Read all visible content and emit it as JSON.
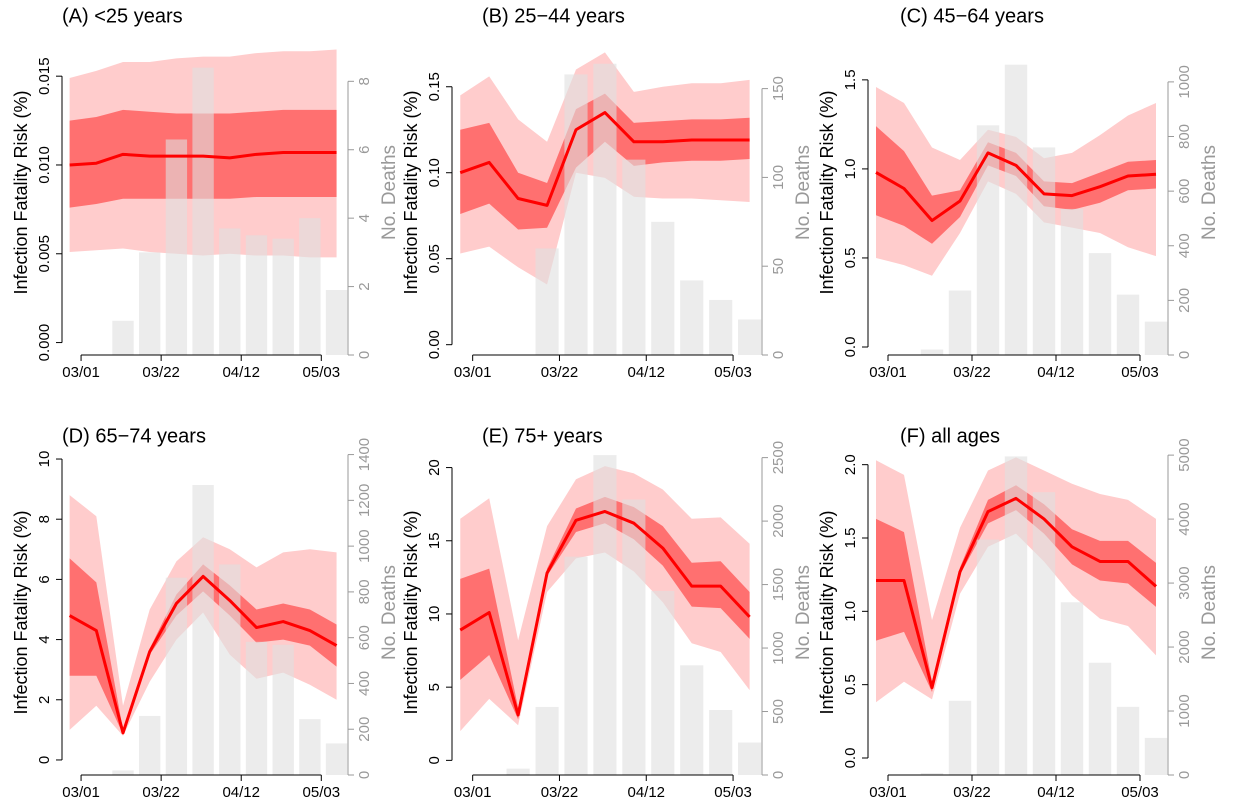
{
  "chart_data": [
    {
      "type": "line",
      "title": "(A) <25 years",
      "ylabel": "Infection Fatality Risk (%)",
      "y2label": "No. Deaths",
      "x": [
        -3,
        4,
        11,
        18,
        25,
        32,
        39,
        46,
        53,
        60,
        67
      ],
      "xlim": [
        -5,
        70
      ],
      "xticks": [
        {
          "value": 0,
          "label": "03/01"
        },
        {
          "value": 21,
          "label": "03/22"
        },
        {
          "value": 42,
          "label": "04/12"
        },
        {
          "value": 63,
          "label": "05/03"
        }
      ],
      "ylim": [
        -0.0007,
        0.0176
      ],
      "yticks": [
        {
          "value": 0,
          "label": "0.000"
        },
        {
          "value": 0.005,
          "label": "0.005"
        },
        {
          "value": 0.01,
          "label": "0.010"
        },
        {
          "value": 0.015,
          "label": "0.015"
        }
      ],
      "y2lim": [
        0,
        9.5
      ],
      "y2ticks": [
        0,
        2,
        4,
        6,
        8
      ],
      "series": [
        {
          "type": "band",
          "color": "#ffcccc",
          "lower": [
            0.0051,
            0.0052,
            0.0053,
            0.0051,
            0.005,
            0.0049,
            0.005,
            0.0049,
            0.0049,
            0.0048,
            0.0048
          ],
          "upper": [
            0.0149,
            0.0153,
            0.0158,
            0.0158,
            0.016,
            0.0161,
            0.0161,
            0.0163,
            0.0164,
            0.0164,
            0.0165
          ]
        },
        {
          "type": "band",
          "color": "#ff7070",
          "lower": [
            0.0076,
            0.0078,
            0.0081,
            0.0081,
            0.0081,
            0.0081,
            0.0081,
            0.0082,
            0.0082,
            0.0082,
            0.0082
          ],
          "upper": [
            0.0125,
            0.0127,
            0.0131,
            0.013,
            0.0129,
            0.0129,
            0.0129,
            0.013,
            0.0131,
            0.0131,
            0.0131
          ]
        },
        {
          "type": "bar",
          "axis": "y2",
          "color": "#e0e0e0",
          "values": [
            0,
            0,
            1,
            3,
            6.3,
            8.4,
            3.7,
            3.5,
            3.4,
            4,
            1.9
          ]
        },
        {
          "type": "line",
          "color": "#ff0000",
          "values": [
            0.01,
            0.0101,
            0.0106,
            0.0105,
            0.0105,
            0.0105,
            0.0104,
            0.0106,
            0.0107,
            0.0107,
            0.0107
          ]
        }
      ]
    },
    {
      "type": "line",
      "title": "(B) 25−44 years",
      "ylabel": "Infection Fatality Risk (%)",
      "y2label": "No. Deaths",
      "x": [
        -3,
        4,
        11,
        18,
        25,
        32,
        39,
        46,
        53,
        60,
        67
      ],
      "xlim": [
        -5,
        70
      ],
      "xticks": [
        {
          "value": 0,
          "label": "03/01"
        },
        {
          "value": 21,
          "label": "03/22"
        },
        {
          "value": 42,
          "label": "04/12"
        },
        {
          "value": 63,
          "label": "05/03"
        }
      ],
      "ylim": [
        -0.006,
        0.183
      ],
      "yticks": [
        {
          "value": 0,
          "label": "0.00"
        },
        {
          "value": 0.05,
          "label": "0.05"
        },
        {
          "value": 0.1,
          "label": "0.10"
        },
        {
          "value": 0.15,
          "label": "0.15"
        }
      ],
      "y2lim": [
        0,
        183
      ],
      "y2ticks": [
        0,
        50,
        100,
        150
      ],
      "series": [
        {
          "type": "band",
          "color": "#ffcccc",
          "lower": [
            0.053,
            0.057,
            0.045,
            0.035,
            0.1,
            0.097,
            0.086,
            0.085,
            0.085,
            0.084,
            0.083
          ],
          "upper": [
            0.145,
            0.156,
            0.131,
            0.118,
            0.16,
            0.17,
            0.147,
            0.15,
            0.152,
            0.152,
            0.154
          ]
        },
        {
          "type": "band",
          "color": "#ff7070",
          "lower": [
            0.076,
            0.082,
            0.067,
            0.068,
            0.103,
            0.118,
            0.104,
            0.106,
            0.107,
            0.107,
            0.108
          ],
          "upper": [
            0.125,
            0.129,
            0.1,
            0.094,
            0.137,
            0.146,
            0.129,
            0.13,
            0.131,
            0.131,
            0.132
          ]
        },
        {
          "type": "bar",
          "axis": "y2",
          "color": "#e0e0e0",
          "values": [
            0,
            0,
            0,
            60,
            158,
            164,
            110,
            75,
            42,
            31,
            20
          ]
        },
        {
          "type": "line",
          "color": "#ff0000",
          "values": [
            0.1,
            0.106,
            0.085,
            0.081,
            0.125,
            0.135,
            0.118,
            0.118,
            0.119,
            0.119,
            0.119
          ]
        }
      ]
    },
    {
      "type": "line",
      "title": "(C) 45−64 years",
      "ylabel": "Infection Fatality Risk (%)",
      "y2label": "No. Deaths",
      "x": [
        -3,
        4,
        11,
        18,
        25,
        32,
        39,
        46,
        53,
        60,
        67
      ],
      "xlim": [
        -5,
        70
      ],
      "xticks": [
        {
          "value": 0,
          "label": "03/01"
        },
        {
          "value": 21,
          "label": "03/22"
        },
        {
          "value": 42,
          "label": "04/12"
        },
        {
          "value": 63,
          "label": "05/03"
        }
      ],
      "ylim": [
        -0.045,
        1.78
      ],
      "yticks": [
        {
          "value": 0,
          "label": "0.0"
        },
        {
          "value": 0.5,
          "label": "0.5"
        },
        {
          "value": 1,
          "label": "1.0"
        },
        {
          "value": 1.5,
          "label": "1.5"
        }
      ],
      "y2lim": [
        0,
        1190
      ],
      "y2ticks": [
        0,
        200,
        400,
        600,
        800,
        1000
      ],
      "series": [
        {
          "type": "band",
          "color": "#ffcccc",
          "lower": [
            0.5,
            0.46,
            0.4,
            0.64,
            0.93,
            0.86,
            0.7,
            0.67,
            0.64,
            0.56,
            0.51
          ],
          "upper": [
            1.46,
            1.37,
            1.12,
            1.05,
            1.22,
            1.18,
            1.06,
            1.09,
            1.19,
            1.3,
            1.37
          ]
        },
        {
          "type": "band",
          "color": "#ff7070",
          "lower": [
            0.74,
            0.68,
            0.58,
            0.73,
            1.02,
            0.96,
            0.79,
            0.77,
            0.81,
            0.88,
            0.89
          ],
          "upper": [
            1.24,
            1.1,
            0.85,
            0.88,
            1.15,
            1.09,
            0.93,
            0.92,
            0.98,
            1.04,
            1.05
          ]
        },
        {
          "type": "bar",
          "axis": "y2",
          "color": "#e0e0e0",
          "values": [
            0,
            0,
            20,
            236,
            841,
            1063,
            760,
            535,
            373,
            221,
            122
          ]
        },
        {
          "type": "line",
          "color": "#ff0000",
          "values": [
            0.98,
            0.89,
            0.71,
            0.82,
            1.09,
            1.02,
            0.86,
            0.85,
            0.9,
            0.96,
            0.97
          ]
        }
      ]
    },
    {
      "type": "line",
      "title": "(D) 65−74 years",
      "ylabel": "Infection Fatality Risk (%)",
      "y2label": "No. Deaths",
      "x": [
        -3,
        4,
        11,
        18,
        25,
        32,
        39,
        46,
        53,
        60,
        67
      ],
      "xlim": [
        -5,
        70
      ],
      "xticks": [
        {
          "value": 0,
          "label": "03/01"
        },
        {
          "value": 21,
          "label": "03/22"
        },
        {
          "value": 42,
          "label": "04/12"
        },
        {
          "value": 63,
          "label": "05/03"
        }
      ],
      "ylim": [
        -0.5,
        10.3
      ],
      "yticks": [
        0,
        2,
        4,
        6,
        8,
        10
      ],
      "y2lim": [
        0,
        1420
      ],
      "y2ticks": [
        0,
        200,
        400,
        600,
        800,
        1000,
        1200,
        1400
      ],
      "series": [
        {
          "type": "band",
          "color": "#ffcccc",
          "lower": [
            1.0,
            1.8,
            0.8,
            2.6,
            4.0,
            4.9,
            3.5,
            2.7,
            2.9,
            2.5,
            2.0
          ],
          "upper": [
            8.8,
            8.1,
            1.8,
            5.0,
            6.6,
            7.4,
            7.0,
            6.4,
            6.9,
            7.0,
            6.9
          ]
        },
        {
          "type": "band",
          "color": "#ff7070",
          "lower": [
            2.8,
            2.8,
            0.85,
            3.5,
            4.8,
            5.6,
            4.8,
            3.9,
            4.0,
            3.8,
            3.1
          ],
          "upper": [
            6.7,
            5.9,
            1.0,
            3.7,
            5.5,
            6.5,
            5.8,
            5.0,
            5.2,
            5.0,
            4.5
          ]
        },
        {
          "type": "bar",
          "axis": "y2",
          "color": "#e0e0e0",
          "values": [
            0,
            0,
            20,
            258,
            862,
            1267,
            920,
            582,
            569,
            244,
            138
          ]
        },
        {
          "type": "line",
          "color": "#ff0000",
          "values": [
            4.8,
            4.3,
            0.9,
            3.6,
            5.2,
            6.1,
            5.3,
            4.4,
            4.6,
            4.3,
            3.8
          ]
        }
      ]
    },
    {
      "type": "line",
      "title": "(E) 75+ years",
      "ylabel": "Infection Fatality Risk (%)",
      "y2label": "No. Deaths",
      "x": [
        -3,
        4,
        11,
        18,
        25,
        32,
        39,
        46,
        53,
        60,
        67
      ],
      "xlim": [
        -5,
        70
      ],
      "xticks": [
        {
          "value": 0,
          "label": "03/01"
        },
        {
          "value": 21,
          "label": "03/22"
        },
        {
          "value": 42,
          "label": "04/12"
        },
        {
          "value": 63,
          "label": "05/03"
        }
      ],
      "ylim": [
        -1.0,
        21.2
      ],
      "yticks": [
        0,
        5,
        10,
        15,
        20
      ],
      "y2lim": [
        0,
        2560
      ],
      "y2ticks": [
        0,
        500,
        1000,
        1500,
        2000,
        2500
      ],
      "series": [
        {
          "type": "band",
          "color": "#ffcccc",
          "lower": [
            2.0,
            4.2,
            2.4,
            11.5,
            13.8,
            14.2,
            12.9,
            10.8,
            8.0,
            7.4,
            4.8
          ],
          "upper": [
            16.5,
            17.9,
            8.2,
            16.0,
            19.2,
            20.1,
            19.6,
            18.5,
            16.5,
            16.6,
            14.8
          ]
        },
        {
          "type": "band",
          "color": "#ff7070",
          "lower": [
            5.5,
            7.2,
            2.8,
            12.6,
            15.6,
            16.2,
            15.1,
            13.3,
            10.5,
            10.4,
            8.3
          ],
          "upper": [
            12.4,
            13.1,
            3.6,
            13.1,
            17.2,
            18.0,
            17.3,
            16.0,
            13.5,
            13.6,
            11.5
          ]
        },
        {
          "type": "bar",
          "axis": "y2",
          "color": "#e0e0e0",
          "values": [
            0,
            0,
            50,
            536,
            1720,
            2520,
            2170,
            1450,
            864,
            512,
            256
          ]
        },
        {
          "type": "line",
          "color": "#ff0000",
          "values": [
            8.9,
            10.1,
            3.1,
            12.8,
            16.4,
            17.0,
            16.2,
            14.5,
            11.9,
            11.9,
            9.8
          ]
        }
      ]
    },
    {
      "type": "line",
      "title": "(F) all ages",
      "ylabel": "Infection Fatality Risk (%)",
      "y2label": "No. Deaths",
      "x": [
        -3,
        4,
        11,
        18,
        25,
        32,
        39,
        46,
        53,
        60,
        67
      ],
      "xlim": [
        -5,
        70
      ],
      "xticks": [
        {
          "value": 0,
          "label": "03/01"
        },
        {
          "value": 21,
          "label": "03/22"
        },
        {
          "value": 42,
          "label": "04/12"
        },
        {
          "value": 63,
          "label": "05/03"
        }
      ],
      "ylim": [
        -0.116,
        2.1
      ],
      "yticks": [
        {
          "value": 0,
          "label": "0.0"
        },
        {
          "value": 0.5,
          "label": "0.5"
        },
        {
          "value": 1,
          "label": "1.0"
        },
        {
          "value": 1.5,
          "label": "1.5"
        },
        {
          "value": 2,
          "label": "2.0"
        }
      ],
      "y2lim": [
        0,
        5080
      ],
      "y2ticks": [
        0,
        1000,
        2000,
        3000,
        4000,
        5000
      ],
      "series": [
        {
          "type": "band",
          "color": "#ffcccc",
          "lower": [
            0.38,
            0.52,
            0.4,
            1.12,
            1.44,
            1.53,
            1.34,
            1.11,
            0.95,
            0.9,
            0.7
          ],
          "upper": [
            2.03,
            1.93,
            0.94,
            1.57,
            1.96,
            2.05,
            1.96,
            1.87,
            1.8,
            1.76,
            1.63
          ]
        },
        {
          "type": "band",
          "color": "#ff7070",
          "lower": [
            0.8,
            0.86,
            0.45,
            1.25,
            1.6,
            1.69,
            1.53,
            1.32,
            1.21,
            1.19,
            1.03
          ],
          "upper": [
            1.63,
            1.54,
            0.52,
            1.3,
            1.76,
            1.86,
            1.73,
            1.56,
            1.48,
            1.48,
            1.33
          ]
        },
        {
          "type": "bar",
          "axis": "y2",
          "color": "#e0e0e0",
          "values": [
            0,
            0,
            30,
            1160,
            3680,
            4980,
            4420,
            2700,
            1755,
            1065,
            580
          ]
        },
        {
          "type": "line",
          "color": "#ff0000",
          "values": [
            1.21,
            1.21,
            0.48,
            1.27,
            1.68,
            1.77,
            1.63,
            1.44,
            1.34,
            1.34,
            1.17
          ]
        }
      ]
    }
  ]
}
